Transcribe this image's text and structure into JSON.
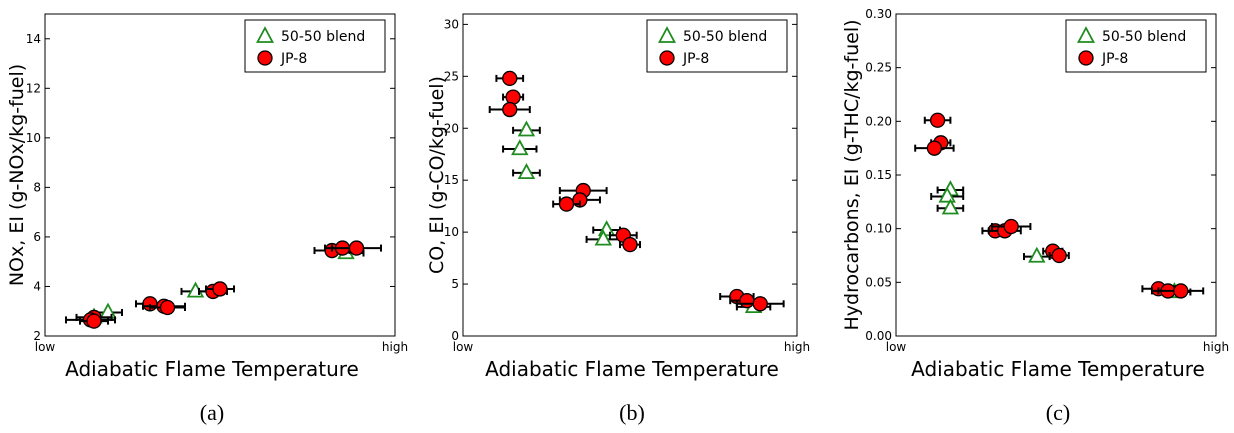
{
  "colors": {
    "blend": "#1f8c1f",
    "jp8_fill": "#ff0000",
    "marker_edge": "#000000",
    "errorbar": "#000000"
  },
  "chart_data": [
    {
      "type": "scatter",
      "caption": "(a)",
      "xlabel": "Adiabatic Flame Temperature",
      "ylabel": "NOx, EI (g-NOx/kg-fuel)",
      "x_tick_labels": [
        "low",
        "high"
      ],
      "xlim": [
        0,
        1
      ],
      "ylim": [
        2,
        15
      ],
      "yticks": [
        2,
        4,
        6,
        8,
        10,
        12,
        14
      ],
      "ytick_labels": [
        "2",
        "4",
        "6",
        "8",
        "10",
        "12",
        "14"
      ],
      "legend": {
        "position": "top-right",
        "entries": [
          "50-50 blend",
          "JP-8"
        ]
      },
      "series": [
        {
          "name": "50-50 blend",
          "marker": "triangle",
          "points": [
            {
              "x": 0.18,
              "y": 2.95,
              "xerr": 0.04
            },
            {
              "x": 0.14,
              "y": 2.75,
              "xerr": 0.05
            },
            {
              "x": 0.43,
              "y": 3.8,
              "xerr": 0.04
            },
            {
              "x": 0.86,
              "y": 5.35,
              "xerr": 0.05
            }
          ]
        },
        {
          "name": "JP-8",
          "marker": "circle",
          "points": [
            {
              "x": 0.14,
              "y": 2.75,
              "xerr": 0.05
            },
            {
              "x": 0.13,
              "y": 2.65,
              "xerr": 0.07
            },
            {
              "x": 0.14,
              "y": 2.6,
              "xerr": 0.04
            },
            {
              "x": 0.3,
              "y": 3.3,
              "xerr": 0.04
            },
            {
              "x": 0.34,
              "y": 3.2,
              "xerr": 0.06
            },
            {
              "x": 0.35,
              "y": 3.15,
              "xerr": 0.05
            },
            {
              "x": 0.48,
              "y": 3.8,
              "xerr": 0.04
            },
            {
              "x": 0.5,
              "y": 3.9,
              "xerr": 0.04
            },
            {
              "x": 0.82,
              "y": 5.45,
              "xerr": 0.05
            },
            {
              "x": 0.85,
              "y": 5.55,
              "xerr": 0.05
            },
            {
              "x": 0.89,
              "y": 5.55,
              "xerr": 0.07
            }
          ]
        }
      ]
    },
    {
      "type": "scatter",
      "caption": "(b)",
      "xlabel": "Adiabatic Flame Temperature",
      "ylabel": "CO, EI (g-CO/kg-fuel)",
      "x_tick_labels": [
        "low",
        "high"
      ],
      "xlim": [
        0,
        1
      ],
      "ylim": [
        0,
        31
      ],
      "yticks": [
        0,
        5,
        10,
        15,
        20,
        25,
        30
      ],
      "ytick_labels": [
        "0",
        "5",
        "10",
        "15",
        "20",
        "25",
        "30"
      ],
      "legend": {
        "position": "top-right",
        "entries": [
          "50-50 blend",
          "JP-8"
        ]
      },
      "series": [
        {
          "name": "50-50 blend",
          "marker": "triangle",
          "points": [
            {
              "x": 0.19,
              "y": 19.8,
              "xerr": 0.04
            },
            {
              "x": 0.17,
              "y": 18.0,
              "xerr": 0.05
            },
            {
              "x": 0.19,
              "y": 15.7,
              "xerr": 0.04
            },
            {
              "x": 0.43,
              "y": 10.2,
              "xerr": 0.04
            },
            {
              "x": 0.42,
              "y": 9.3,
              "xerr": 0.05
            },
            {
              "x": 0.87,
              "y": 2.8,
              "xerr": 0.05
            }
          ]
        },
        {
          "name": "JP-8",
          "marker": "circle",
          "points": [
            {
              "x": 0.14,
              "y": 24.8,
              "xerr": 0.04
            },
            {
              "x": 0.15,
              "y": 23.0,
              "xerr": 0.03
            },
            {
              "x": 0.14,
              "y": 21.8,
              "xerr": 0.06
            },
            {
              "x": 0.36,
              "y": 14.0,
              "xerr": 0.07
            },
            {
              "x": 0.35,
              "y": 13.1,
              "xerr": 0.06
            },
            {
              "x": 0.31,
              "y": 12.7,
              "xerr": 0.04
            },
            {
              "x": 0.48,
              "y": 9.7,
              "xerr": 0.04
            },
            {
              "x": 0.5,
              "y": 8.8,
              "xerr": 0.03
            },
            {
              "x": 0.82,
              "y": 3.8,
              "xerr": 0.05
            },
            {
              "x": 0.85,
              "y": 3.4,
              "xerr": 0.05
            },
            {
              "x": 0.89,
              "y": 3.1,
              "xerr": 0.07
            }
          ]
        }
      ]
    },
    {
      "type": "scatter",
      "caption": "(c)",
      "xlabel": "Adiabatic Flame Temperature",
      "ylabel": "Hydrocarbons, EI (g-THC/kg-fuel)",
      "x_tick_labels": [
        "low",
        "high"
      ],
      "xlim": [
        0,
        1
      ],
      "ylim": [
        0,
        0.3
      ],
      "yticks": [
        0,
        0.05,
        0.1,
        0.15,
        0.2,
        0.25,
        0.3
      ],
      "ytick_labels": [
        "0.00",
        "0.05",
        "0.10",
        "0.15",
        "0.20",
        "0.25",
        "0.30"
      ],
      "legend": {
        "position": "top-right",
        "entries": [
          "50-50 blend",
          "JP-8"
        ]
      },
      "series": [
        {
          "name": "50-50 blend",
          "marker": "triangle",
          "points": [
            {
              "x": 0.17,
              "y": 0.136,
              "xerr": 0.04
            },
            {
              "x": 0.16,
              "y": 0.13,
              "xerr": 0.05
            },
            {
              "x": 0.17,
              "y": 0.119,
              "xerr": 0.04
            },
            {
              "x": 0.44,
              "y": 0.074,
              "xerr": 0.04
            },
            {
              "x": 0.87,
              "y": 0.041,
              "xerr": 0.05
            }
          ]
        },
        {
          "name": "JP-8",
          "marker": "circle",
          "points": [
            {
              "x": 0.13,
              "y": 0.201,
              "xerr": 0.04
            },
            {
              "x": 0.14,
              "y": 0.18,
              "xerr": 0.03
            },
            {
              "x": 0.12,
              "y": 0.175,
              "xerr": 0.06
            },
            {
              "x": 0.31,
              "y": 0.098,
              "xerr": 0.04
            },
            {
              "x": 0.34,
              "y": 0.098,
              "xerr": 0.05
            },
            {
              "x": 0.36,
              "y": 0.102,
              "xerr": 0.06
            },
            {
              "x": 0.49,
              "y": 0.079,
              "xerr": 0.03
            },
            {
              "x": 0.51,
              "y": 0.075,
              "xerr": 0.03
            },
            {
              "x": 0.82,
              "y": 0.044,
              "xerr": 0.05
            },
            {
              "x": 0.85,
              "y": 0.042,
              "xerr": 0.05
            },
            {
              "x": 0.89,
              "y": 0.042,
              "xerr": 0.07
            }
          ]
        }
      ]
    }
  ]
}
